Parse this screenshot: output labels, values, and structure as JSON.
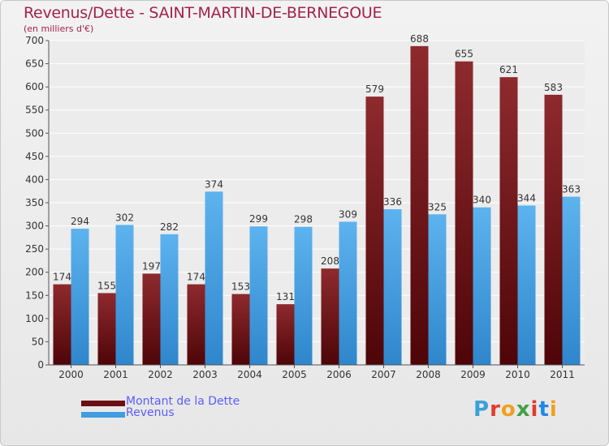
{
  "header": {
    "title": "Revenus/Dette - SAINT-MARTIN-DE-BERNEGOUE",
    "subtitle": "(en milliers d'€)"
  },
  "legend": [
    {
      "label": "Montant de la Dette",
      "color": "#6b0f12"
    },
    {
      "label": "Revenus",
      "color": "#3f9de0"
    }
  ],
  "logo": {
    "text": "Proxiti",
    "colors": [
      "#3aa0d8",
      "#e03c2c",
      "#f0a020",
      "#43a047",
      "#e03c2c",
      "#1e88e5",
      "#f0a020"
    ]
  },
  "colors": {
    "title": "#a3224e",
    "dette": "#6b0f12",
    "revenus": "#3f9de0",
    "label": "#333333"
  },
  "chart_data": {
    "type": "bar",
    "categories": [
      "2000",
      "2001",
      "2002",
      "2003",
      "2004",
      "2005",
      "2006",
      "2007",
      "2008",
      "2009",
      "2010",
      "2011"
    ],
    "series": [
      {
        "name": "Montant de la Dette",
        "values": [
          174,
          155,
          197,
          174,
          153,
          131,
          208,
          579,
          688,
          655,
          621,
          583
        ]
      },
      {
        "name": "Revenus",
        "values": [
          294,
          302,
          282,
          374,
          299,
          298,
          309,
          336,
          325,
          340,
          344,
          363
        ]
      }
    ],
    "title": "Revenus/Dette - SAINT-MARTIN-DE-BERNEGOUE",
    "ylabel": "(en milliers d'€)",
    "ylim": [
      0,
      700
    ],
    "yticks": [
      0,
      50,
      100,
      150,
      200,
      250,
      300,
      350,
      400,
      450,
      500,
      550,
      600,
      650,
      700
    ],
    "grid": true,
    "legend_position": "bottom-left"
  }
}
